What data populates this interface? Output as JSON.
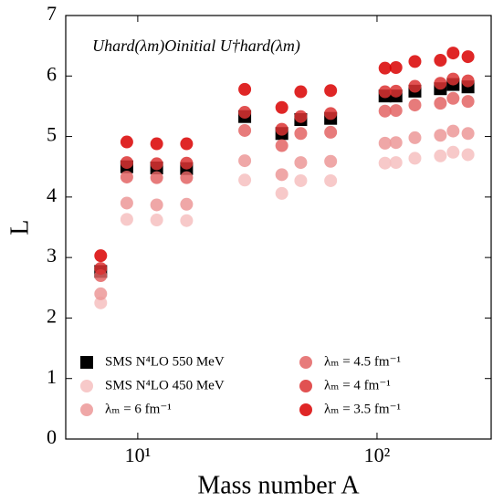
{
  "chart_data": {
    "type": "scatter",
    "annotation": "Uhard(λm)Oinitial U†hard(λm)",
    "x_label": "Mass number A",
    "y_label": "L",
    "x": [
      7,
      9,
      12,
      16,
      28,
      40,
      48,
      64,
      108,
      120,
      144,
      184,
      208,
      240
    ],
    "xlim": [
      5,
      300
    ],
    "ylim": [
      0,
      7
    ],
    "x_scale": "log",
    "xticks": [
      {
        "value": 10,
        "label": "10¹"
      },
      {
        "value": 100,
        "label": "10²"
      }
    ],
    "yticks": [
      0,
      1,
      2,
      3,
      4,
      5,
      6,
      7
    ],
    "legend": "lower center",
    "series": [
      {
        "name": "SMS N⁴LO 550 MeV",
        "color": "#000000",
        "marker": "square",
        "values": [
          2.77,
          4.5,
          4.48,
          4.47,
          5.33,
          5.05,
          5.28,
          5.3,
          5.67,
          5.67,
          5.75,
          5.79,
          5.86,
          5.82
        ]
      },
      {
        "name": "SMS N⁴LO 450 MeV",
        "color": "#f6c0c0",
        "marker": "circle",
        "values": [
          2.25,
          3.63,
          3.62,
          3.61,
          4.28,
          4.06,
          4.27,
          4.27,
          4.56,
          4.57,
          4.64,
          4.68,
          4.74,
          4.7
        ]
      },
      {
        "name": "λₘ = 6 fm⁻¹",
        "color": "#ec9898",
        "marker": "circle",
        "values": [
          2.4,
          3.9,
          3.87,
          3.88,
          4.6,
          4.37,
          4.57,
          4.59,
          4.89,
          4.9,
          4.98,
          5.02,
          5.09,
          5.05
        ]
      },
      {
        "name": "λₘ = 4.5 fm⁻¹",
        "color": "#e36464",
        "marker": "circle",
        "values": [
          2.7,
          4.33,
          4.32,
          4.32,
          5.1,
          4.85,
          5.05,
          5.07,
          5.42,
          5.43,
          5.52,
          5.55,
          5.63,
          5.58
        ]
      },
      {
        "name": "λₘ = 4 fm⁻¹",
        "color": "#dc3232",
        "marker": "circle",
        "values": [
          2.82,
          4.57,
          4.55,
          4.56,
          5.4,
          5.12,
          5.33,
          5.38,
          5.74,
          5.75,
          5.83,
          5.88,
          5.95,
          5.92
        ]
      },
      {
        "name": "λₘ = 3.5 fm⁻¹",
        "color": "#d90000",
        "marker": "circle",
        "values": [
          3.03,
          4.91,
          4.88,
          4.88,
          5.78,
          5.48,
          5.74,
          5.76,
          6.13,
          6.14,
          6.24,
          6.26,
          6.38,
          6.32
        ]
      }
    ]
  }
}
